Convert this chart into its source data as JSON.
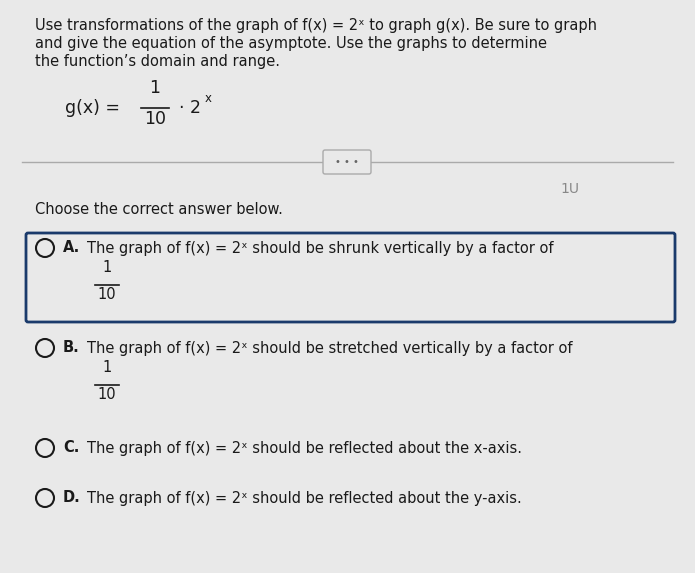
{
  "bg_color": "#e9e9e9",
  "title_text_line1": "Use transformations of the graph of f(x) = 2ˣ to graph g(x). Be sure to graph",
  "title_text_line2": "and give the equation of the asymptote. Use the graphs to determine",
  "title_text_line3": "the function’s domain and range.",
  "separator_label": "• • •",
  "right_label": "1U",
  "choose_text": "Choose the correct answer below.",
  "options": [
    {
      "letter": "A.",
      "text_line1": "The graph of f(x) = 2ˣ should be shrunk vertically by a factor of",
      "has_fraction": true,
      "selected": true
    },
    {
      "letter": "B.",
      "text_line1": "The graph of f(x) = 2ˣ should be stretched vertically by a factor of",
      "has_fraction": true,
      "selected": false
    },
    {
      "letter": "C.",
      "text_line1": "The graph of f(x) = 2ˣ should be reflected about the x-axis.",
      "has_fraction": false,
      "selected": false
    },
    {
      "letter": "D.",
      "text_line1": "The graph of f(x) = 2ˣ should be reflected about the y-axis.",
      "has_fraction": false,
      "selected": false
    }
  ],
  "text_color": "#1a1a1a",
  "box_color": "#1a3a6b",
  "circle_color": "#1a1a1a",
  "font_size_title": 10.5,
  "font_size_body": 10.5,
  "font_size_formula": 12.5
}
